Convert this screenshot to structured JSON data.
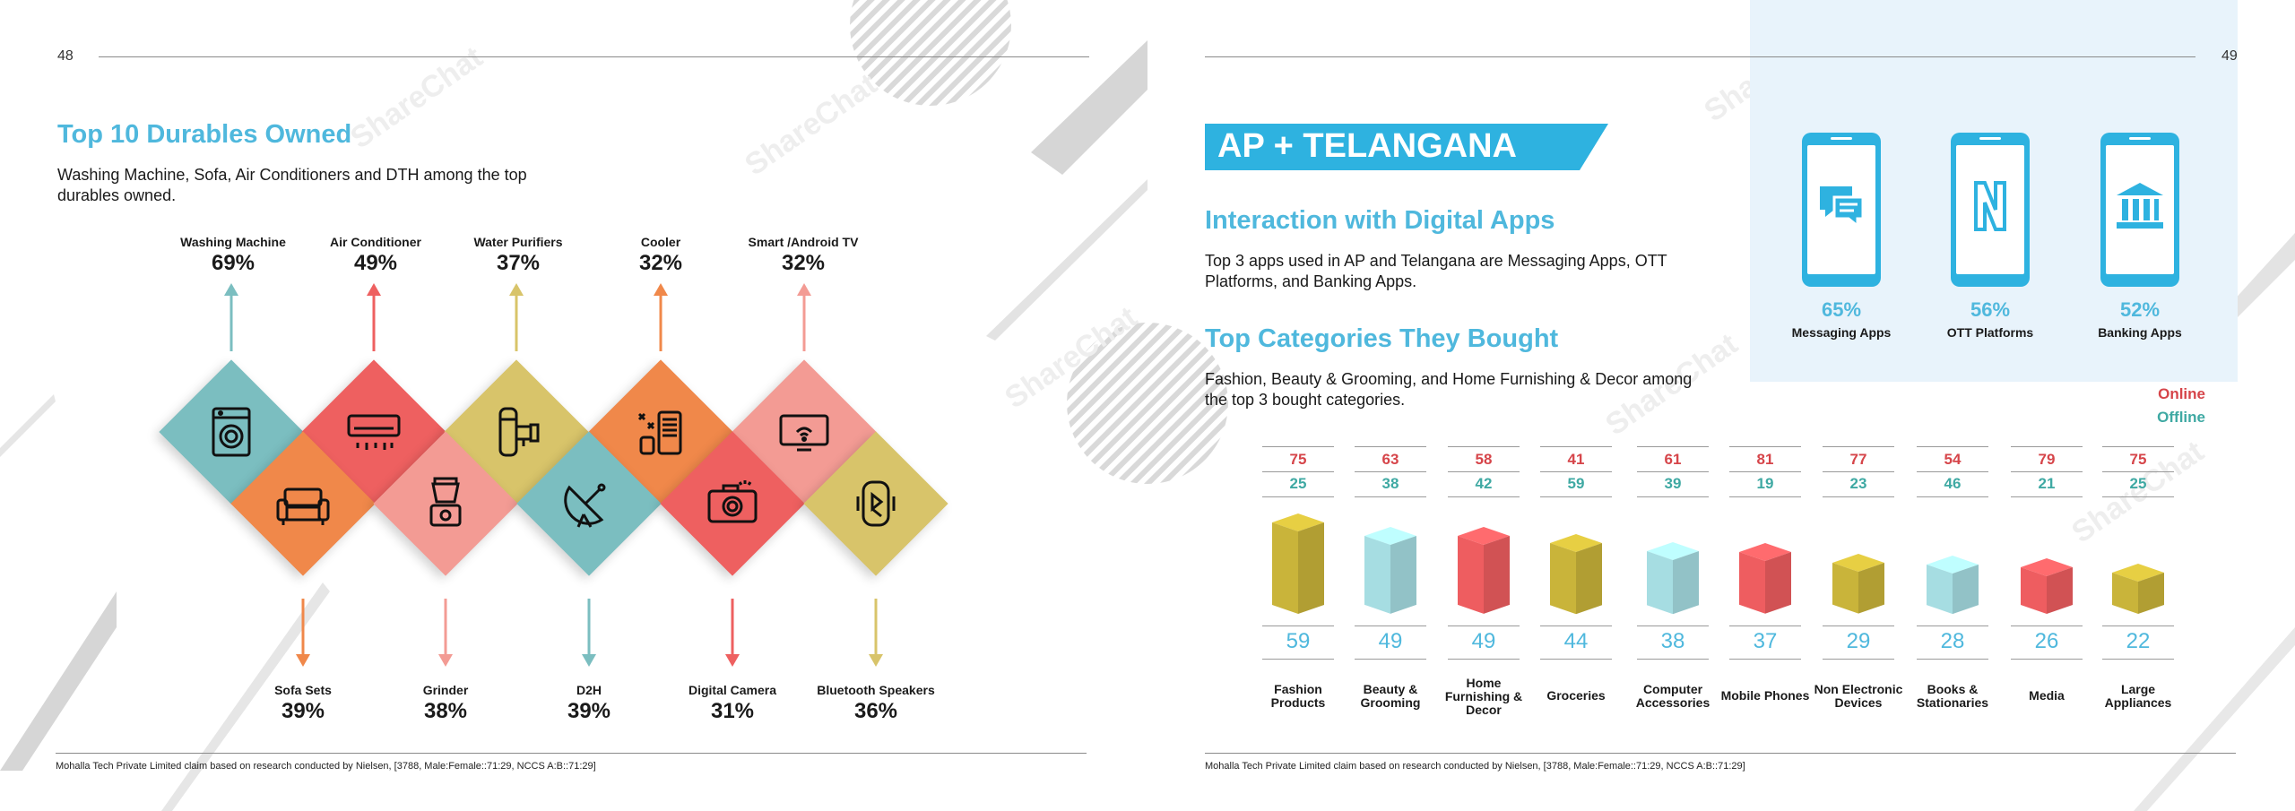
{
  "left_page": {
    "page_number": "48",
    "title": "Top 10 Durables Owned",
    "subtitle": "Washing Machine, Sofa, Air Conditioners and DTH among the top durables owned.",
    "top_items": [
      {
        "label": "Washing Machine",
        "pct": "69%",
        "color": "#7bbec0",
        "icon": "washing-machine-icon"
      },
      {
        "label": "Air Conditioner",
        "pct": "49%",
        "color": "#ee6060",
        "icon": "air-conditioner-icon"
      },
      {
        "label": "Water Purifiers",
        "pct": "37%",
        "color": "#d8c46a",
        "icon": "water-purifier-icon"
      },
      {
        "label": "Cooler",
        "pct": "32%",
        "color": "#f0884a",
        "icon": "cooler-icon"
      },
      {
        "label": "Smart /Android TV",
        "pct": "32%",
        "color": "#f39b94",
        "icon": "smart-tv-icon"
      }
    ],
    "bottom_items": [
      {
        "label": "Sofa Sets",
        "pct": "39%",
        "color": "#f0884a",
        "icon": "sofa-icon"
      },
      {
        "label": "Grinder",
        "pct": "38%",
        "color": "#f39b94",
        "icon": "grinder-icon"
      },
      {
        "label": "D2H",
        "pct": "39%",
        "color": "#7bbec0",
        "icon": "satellite-dish-icon"
      },
      {
        "label": "Digital Camera",
        "pct": "31%",
        "color": "#ee6060",
        "icon": "camera-icon"
      },
      {
        "label": "Bluetooth Speakers",
        "pct": "36%",
        "color": "#d8c46a",
        "icon": "bluetooth-speaker-icon"
      }
    ],
    "footnote": "Mohalla Tech Private Limited claim based on research conducted by Nielsen, [3788, Male:Female::71:29, NCCS A:B::71:29]",
    "watermark": "ShareChat"
  },
  "right_page": {
    "page_number": "49",
    "banner": "AP + TELANGANA",
    "section1_title": "Interaction with Digital Apps",
    "section1_text": "Top 3 apps used in AP and Telangana are Messaging Apps, OTT Platforms, and Banking Apps.",
    "apps": [
      {
        "pct": "65%",
        "label": "Messaging Apps",
        "icon": "chat-bubble-icon"
      },
      {
        "pct": "56%",
        "label": "OTT Platforms",
        "icon": "netflix-n-icon"
      },
      {
        "pct": "52%",
        "label": "Banking Apps",
        "icon": "bank-icon"
      }
    ],
    "section2_title": "Top Categories They Bought",
    "section2_text": "Fashion, Beauty & Grooming, and Home Furnishing & Decor among the top 3 bought categories.",
    "legend": {
      "online": "Online",
      "offline": "Offline",
      "online_color": "#d6454a",
      "offline_color": "#3fa9a3"
    },
    "categories": [
      {
        "name": "Fashion Products",
        "online": "75",
        "offline": "25",
        "total": "59",
        "color": "#c9b43a"
      },
      {
        "name": "Beauty & Grooming",
        "online": "63",
        "offline": "38",
        "total": "49",
        "color": "#a6dde2"
      },
      {
        "name": "Home Furnishing & Decor",
        "online": "58",
        "offline": "42",
        "total": "49",
        "color": "#ee5d60"
      },
      {
        "name": "Groceries",
        "online": "41",
        "offline": "59",
        "total": "44",
        "color": "#c9b43a"
      },
      {
        "name": "Computer Accessories",
        "online": "61",
        "offline": "39",
        "total": "38",
        "color": "#a6dde2"
      },
      {
        "name": "Mobile Phones",
        "online": "81",
        "offline": "19",
        "total": "37",
        "color": "#ee5d60"
      },
      {
        "name": "Non Electronic Devices",
        "online": "77",
        "offline": "23",
        "total": "29",
        "color": "#c9b43a"
      },
      {
        "name": "Books & Stationaries",
        "online": "54",
        "offline": "46",
        "total": "28",
        "color": "#a6dde2"
      },
      {
        "name": "Media",
        "online": "79",
        "offline": "21",
        "total": "26",
        "color": "#ee5d60"
      },
      {
        "name": "Large Appliances",
        "online": "75",
        "offline": "25",
        "total": "22",
        "color": "#c9b43a"
      }
    ],
    "footnote": "Mohalla Tech Private Limited claim based on research conducted by Nielsen, [3788, Male:Female::71:29, NCCS A:B::71:29]"
  }
}
